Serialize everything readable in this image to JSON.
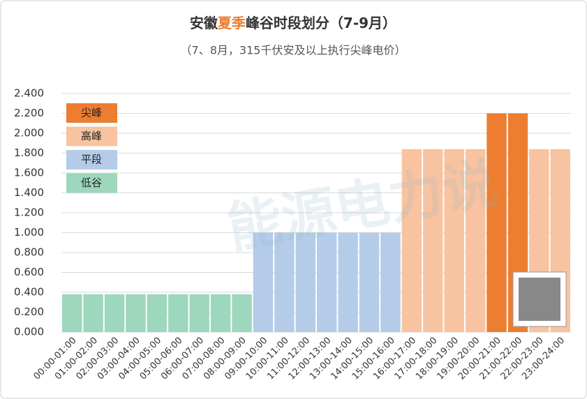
{
  "chart_data": {
    "type": "bar",
    "title": [
      "安徽",
      "夏季",
      "峰谷时段划分（7-9月）"
    ],
    "title_highlight_color": "#ed7d31",
    "subtitle": "（7、8月，315千伏安及以上执行尖峰电价）",
    "watermark": "能源电力说",
    "categories": [
      "00:00-01:00",
      "01:00-02:00",
      "02:00-03:00",
      "03:00-04:00",
      "04:00-05:00",
      "05:00-06:00",
      "06:00-07:00",
      "07:00-08:00",
      "08:00-09:00",
      "09:00-10:00",
      "10:00-11:00",
      "11:00-12:00",
      "12:00-13:00",
      "13:00-14:00",
      "14:00-15:00",
      "15:00-16:00",
      "16:00-17:00",
      "17:00-18:00",
      "18:00-19:00",
      "19:00-20:00",
      "20:00-21:00",
      "21:00-22:00",
      "22:00-23:00",
      "23:00-24:00"
    ],
    "series": [
      {
        "name": "尖峰",
        "color": "#ed7d31",
        "values": [
          null,
          null,
          null,
          null,
          null,
          null,
          null,
          null,
          null,
          null,
          null,
          null,
          null,
          null,
          null,
          null,
          null,
          null,
          null,
          null,
          2.2,
          2.2,
          null,
          null
        ]
      },
      {
        "name": "高峰",
        "color": "#f8c3a0",
        "values": [
          null,
          null,
          null,
          null,
          null,
          null,
          null,
          null,
          null,
          null,
          null,
          null,
          null,
          null,
          null,
          null,
          1.84,
          1.84,
          1.84,
          1.84,
          null,
          null,
          1.84,
          1.84
        ]
      },
      {
        "name": "平段",
        "color": "#b4cce8",
        "values": [
          null,
          null,
          null,
          null,
          null,
          null,
          null,
          null,
          null,
          1.0,
          1.0,
          1.0,
          1.0,
          1.0,
          1.0,
          1.0,
          null,
          null,
          null,
          null,
          null,
          null,
          null,
          null
        ]
      },
      {
        "name": "低谷",
        "color": "#9dd7bd",
        "values": [
          0.38,
          0.38,
          0.38,
          0.38,
          0.38,
          0.38,
          0.38,
          0.38,
          0.38,
          null,
          null,
          null,
          null,
          null,
          null,
          null,
          null,
          null,
          null,
          null,
          null,
          null,
          null,
          null
        ]
      }
    ],
    "ylim": [
      0,
      2.4
    ],
    "yticks": [
      {
        "value": 0,
        "label": "0.000"
      },
      {
        "value": 0.2,
        "label": "0.200"
      },
      {
        "value": 0.4,
        "label": "0.400"
      },
      {
        "value": 0.6,
        "label": "0.600"
      },
      {
        "value": 0.8,
        "label": "0.800"
      },
      {
        "value": 1.0,
        "label": "1.000"
      },
      {
        "value": 1.2,
        "label": "1.200"
      },
      {
        "value": 1.4,
        "label": "1.400"
      },
      {
        "value": 1.6,
        "label": "1.600"
      },
      {
        "value": 1.8,
        "label": "1.800"
      },
      {
        "value": 2.0,
        "label": "2.000"
      },
      {
        "value": 2.2,
        "label": "2.200"
      },
      {
        "value": 2.4,
        "label": "2.400"
      }
    ],
    "grid": true
  }
}
